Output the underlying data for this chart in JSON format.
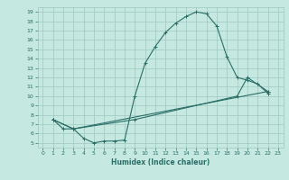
{
  "xlabel": "Humidex (Indice chaleur)",
  "bg_color": "#c5e8e0",
  "grid_color": "#9dc8c0",
  "line_color": "#2a6e68",
  "xlim": [
    -0.5,
    23.5
  ],
  "ylim": [
    4.5,
    19.5
  ],
  "xticks": [
    0,
    1,
    2,
    3,
    4,
    5,
    6,
    7,
    8,
    9,
    10,
    11,
    12,
    13,
    14,
    15,
    16,
    17,
    18,
    19,
    20,
    21,
    22,
    23
  ],
  "yticks": [
    5,
    6,
    7,
    8,
    9,
    10,
    11,
    12,
    13,
    14,
    15,
    16,
    17,
    18,
    19
  ],
  "curve1_x": [
    1,
    2,
    3,
    4,
    5,
    6,
    7,
    8,
    9,
    10,
    11,
    12,
    13,
    14,
    15,
    16,
    17,
    18,
    19,
    20,
    21,
    22
  ],
  "curve1_y": [
    7.5,
    6.5,
    6.5,
    5.5,
    5.0,
    5.2,
    5.2,
    5.3,
    10.0,
    13.5,
    15.3,
    16.8,
    17.8,
    18.5,
    19.0,
    18.8,
    17.5,
    14.2,
    12.0,
    11.7,
    11.3,
    10.3
  ],
  "curve2_x": [
    1,
    3,
    9,
    19,
    20,
    22
  ],
  "curve2_y": [
    7.5,
    6.5,
    7.5,
    10.0,
    12.0,
    10.5
  ],
  "curve3_x": [
    1,
    3,
    22
  ],
  "curve3_y": [
    7.5,
    6.5,
    10.5
  ]
}
